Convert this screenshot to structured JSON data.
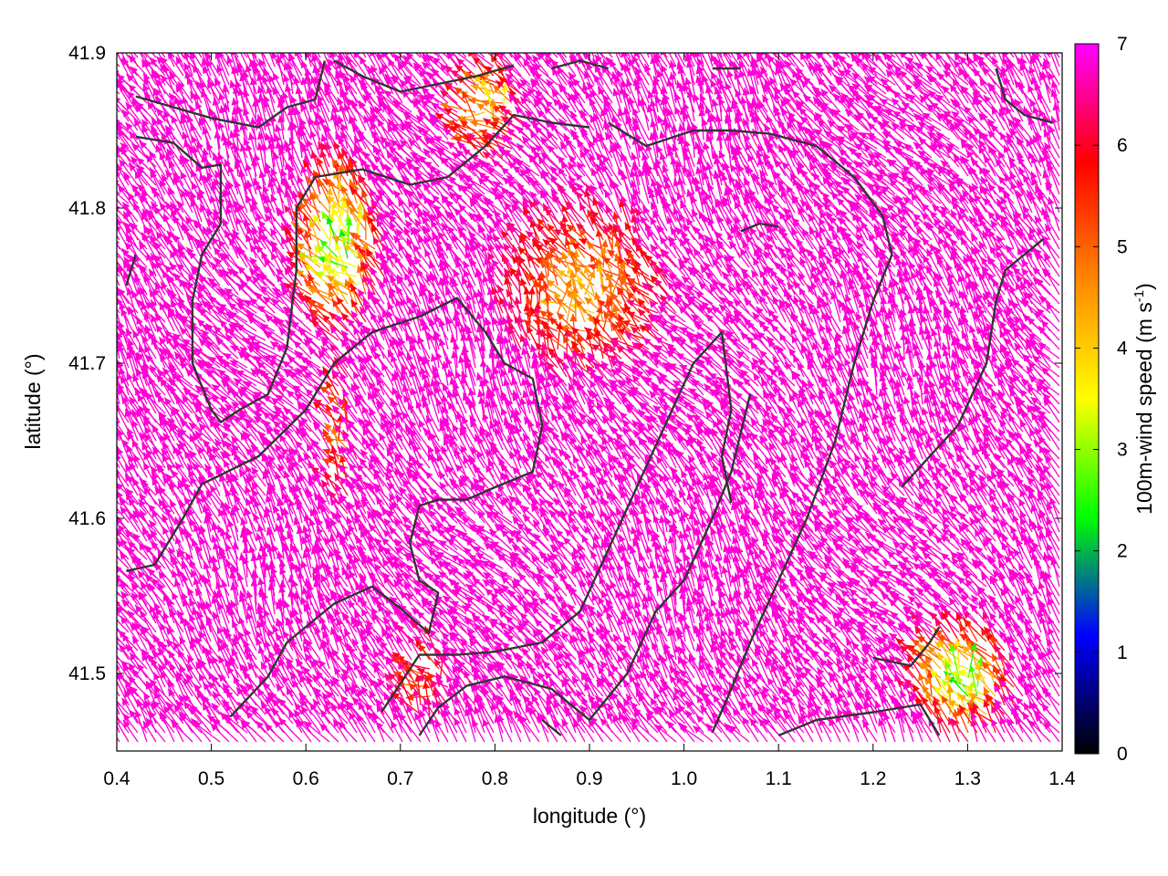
{
  "chart_data": {
    "type": "vector_field",
    "xlabel": "longitude (°)",
    "ylabel": "latitude (°)",
    "xlim": [
      0.4,
      1.4
    ],
    "ylim": [
      41.45,
      41.9
    ],
    "xticks": [
      0.4,
      0.5,
      0.6,
      0.7,
      0.8,
      0.9,
      1.0,
      1.1,
      1.2,
      1.3,
      1.4
    ],
    "xtick_labels": [
      "0.4",
      "0.5",
      "0.6",
      "0.7",
      "0.8",
      "0.9",
      "1.0",
      "1.1",
      "1.2",
      "1.3",
      "1.4"
    ],
    "yticks": [
      41.5,
      41.6,
      41.7,
      41.8,
      41.9
    ],
    "ytick_labels": [
      "41.5",
      "41.6",
      "41.7",
      "41.8",
      "41.9"
    ],
    "colorbar": {
      "label_main": "100m-wind speed (m s",
      "label_exp": "-1",
      "label_close": ")",
      "range": [
        0,
        7
      ],
      "ticks": [
        0,
        1,
        2,
        3,
        4,
        5,
        6,
        7
      ],
      "tick_labels": [
        "0",
        "1",
        "2",
        "3",
        "4",
        "5",
        "6",
        "7"
      ],
      "colors": [
        "#000000",
        "#0000ff",
        "#00ff00",
        "#ffff00",
        "#ff8800",
        "#ff0000",
        "#ff00ff"
      ]
    },
    "grid": false,
    "contour_color": "#333333",
    "contours": [
      [
        [
          0.42,
          41.872
        ],
        [
          0.5,
          41.858
        ],
        [
          0.55,
          41.852
        ],
        [
          0.58,
          41.865
        ],
        [
          0.61,
          41.87
        ],
        [
          0.62,
          41.895
        ]
      ],
      [
        [
          0.42,
          41.846
        ],
        [
          0.46,
          41.842
        ],
        [
          0.49,
          41.826
        ],
        [
          0.51,
          41.828
        ],
        [
          0.51,
          41.79
        ],
        [
          0.49,
          41.77
        ],
        [
          0.48,
          41.74
        ],
        [
          0.48,
          41.7
        ],
        [
          0.5,
          41.67
        ],
        [
          0.51,
          41.662
        ],
        [
          0.53,
          41.67
        ],
        [
          0.56,
          41.68
        ],
        [
          0.58,
          41.71
        ],
        [
          0.59,
          41.76
        ],
        [
          0.59,
          41.8
        ],
        [
          0.61,
          41.82
        ],
        [
          0.66,
          41.825
        ],
        [
          0.71,
          41.815
        ],
        [
          0.75,
          41.82
        ],
        [
          0.79,
          41.84
        ],
        [
          0.82,
          41.86
        ],
        [
          0.86,
          41.855
        ],
        [
          0.9,
          41.852
        ]
      ],
      [
        [
          0.41,
          41.75
        ],
        [
          0.42,
          41.77
        ]
      ],
      [
        [
          0.41,
          41.566
        ],
        [
          0.44,
          41.57
        ],
        [
          0.47,
          41.6
        ],
        [
          0.49,
          41.622
        ],
        [
          0.55,
          41.64
        ],
        [
          0.6,
          41.67
        ],
        [
          0.63,
          41.7
        ],
        [
          0.67,
          41.72
        ],
        [
          0.72,
          41.73
        ],
        [
          0.76,
          41.742
        ],
        [
          0.79,
          41.72
        ],
        [
          0.81,
          41.7
        ],
        [
          0.84,
          41.69
        ],
        [
          0.85,
          41.66
        ],
        [
          0.84,
          41.63
        ],
        [
          0.8,
          41.62
        ],
        [
          0.77,
          41.612
        ],
        [
          0.74,
          41.612
        ],
        [
          0.72,
          41.608
        ],
        [
          0.71,
          41.584
        ],
        [
          0.72,
          41.56
        ],
        [
          0.74,
          41.552
        ],
        [
          0.73,
          41.526
        ],
        [
          0.7,
          41.542
        ],
        [
          0.67,
          41.556
        ],
        [
          0.63,
          41.545
        ],
        [
          0.58,
          41.52
        ],
        [
          0.56,
          41.498
        ],
        [
          0.52,
          41.472
        ]
      ],
      [
        [
          0.68,
          41.475
        ],
        [
          0.72,
          41.512
        ],
        [
          0.76,
          41.512
        ],
        [
          0.8,
          41.514
        ],
        [
          0.85,
          41.52
        ],
        [
          0.89,
          41.54
        ],
        [
          0.92,
          41.58
        ],
        [
          0.95,
          41.62
        ],
        [
          0.98,
          41.66
        ],
        [
          1.01,
          41.7
        ],
        [
          1.04,
          41.72
        ],
        [
          1.05,
          41.67
        ],
        [
          1.04,
          41.64
        ],
        [
          1.05,
          41.61
        ]
      ],
      [
        [
          0.72,
          41.46
        ],
        [
          0.74,
          41.478
        ],
        [
          0.77,
          41.492
        ],
        [
          0.81,
          41.498
        ],
        [
          0.86,
          41.49
        ],
        [
          0.9,
          41.47
        ],
        [
          0.94,
          41.5
        ],
        [
          0.97,
          41.54
        ],
        [
          1.0,
          41.56
        ],
        [
          1.03,
          41.6
        ],
        [
          1.05,
          41.63
        ],
        [
          1.07,
          41.68
        ]
      ],
      [
        [
          0.85,
          41.47
        ],
        [
          0.87,
          41.46
        ]
      ],
      [
        [
          0.63,
          41.895
        ],
        [
          0.66,
          41.885
        ],
        [
          0.7,
          41.875
        ],
        [
          0.74,
          41.88
        ],
        [
          0.78,
          41.885
        ],
        [
          0.82,
          41.892
        ]
      ],
      [
        [
          0.86,
          41.89
        ],
        [
          0.89,
          41.895
        ],
        [
          0.92,
          41.89
        ]
      ],
      [
        [
          1.03,
          41.89
        ],
        [
          1.06,
          41.89
        ]
      ],
      [
        [
          0.92,
          41.855
        ],
        [
          0.96,
          41.84
        ],
        [
          1.01,
          41.85
        ],
        [
          1.05,
          41.85
        ],
        [
          1.09,
          41.848
        ],
        [
          1.14,
          41.84
        ],
        [
          1.18,
          41.82
        ],
        [
          1.21,
          41.795
        ],
        [
          1.22,
          41.77
        ],
        [
          1.2,
          41.74
        ],
        [
          1.18,
          41.7
        ],
        [
          1.16,
          41.65
        ],
        [
          1.13,
          41.6
        ],
        [
          1.1,
          41.56
        ],
        [
          1.07,
          41.52
        ],
        [
          1.05,
          41.49
        ],
        [
          1.03,
          41.462
        ]
      ],
      [
        [
          1.06,
          41.785
        ],
        [
          1.08,
          41.79
        ],
        [
          1.1,
          41.788
        ]
      ],
      [
        [
          1.2,
          41.51
        ],
        [
          1.24,
          41.505
        ],
        [
          1.26,
          41.52
        ],
        [
          1.27,
          41.53
        ]
      ],
      [
        [
          1.1,
          41.46
        ],
        [
          1.14,
          41.47
        ],
        [
          1.2,
          41.475
        ],
        [
          1.25,
          41.48
        ],
        [
          1.27,
          41.46
        ]
      ],
      [
        [
          1.23,
          41.62
        ],
        [
          1.26,
          41.64
        ],
        [
          1.29,
          41.66
        ],
        [
          1.32,
          41.7
        ],
        [
          1.33,
          41.74
        ],
        [
          1.34,
          41.76
        ],
        [
          1.38,
          41.78
        ]
      ],
      [
        [
          1.33,
          41.89
        ],
        [
          1.34,
          41.87
        ],
        [
          1.36,
          41.86
        ],
        [
          1.39,
          41.855
        ]
      ]
    ],
    "regional_wind": {
      "u": -0.55,
      "v": 0.84,
      "speed": 6.8
    },
    "low_wind_zones": [
      {
        "center": [
          0.64,
          41.77
        ],
        "radius": [
          0.05,
          0.06
        ],
        "min_speed": 2.0
      },
      {
        "center": [
          0.8,
          41.86
        ],
        "radius": [
          0.04,
          0.035
        ],
        "min_speed": 3.5
      },
      {
        "center": [
          0.9,
          41.74
        ],
        "radius": [
          0.1,
          0.06
        ],
        "min_speed": 4.0
      },
      {
        "center": [
          1.3,
          41.49
        ],
        "radius": [
          0.06,
          0.04
        ],
        "min_speed": 2.0
      },
      {
        "center": [
          0.64,
          41.65
        ],
        "radius": [
          0.015,
          0.05
        ],
        "min_speed": 4.5
      },
      {
        "center": [
          0.73,
          41.49
        ],
        "radius": [
          0.03,
          0.03
        ],
        "min_speed": 5.0
      }
    ]
  }
}
